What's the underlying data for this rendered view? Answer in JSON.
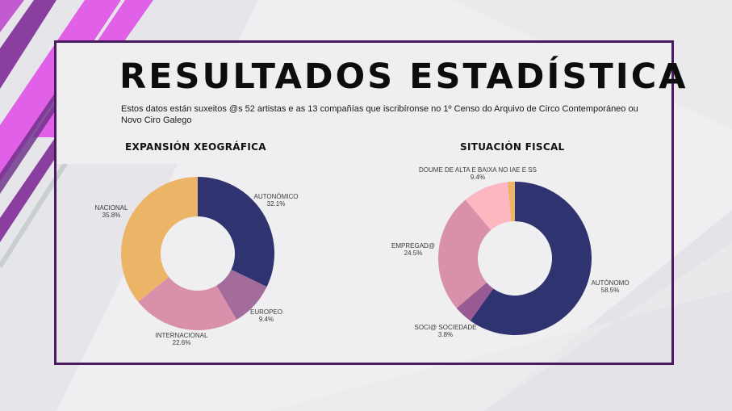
{
  "header": {
    "title": "RESULTADOS  ESTADÍSTICA",
    "subtitle": "Estos datos están suxeitos @s 52 artistas e as 13 compañías que  iscribíronse no 1º Censo do Arquivo de Circo Contemporáneo ou Novo Ciro Galego"
  },
  "colors": {
    "frame": "#4a1a5e",
    "accent_pink": "#e066e6",
    "accent_purple": "#9a4fb0"
  },
  "chart_data": [
    {
      "type": "pie",
      "title": "EXPANSIÓN XEOGRÁFICA",
      "donut": true,
      "slices": [
        {
          "name": "AUTONÓMICO",
          "value": 32.1,
          "label": "32.1%",
          "color": "#2f3470"
        },
        {
          "name": "EUROPEO",
          "value": 9.4,
          "label": "9.4%",
          "color": "#a46c9b"
        },
        {
          "name": "INTERNACIONAL",
          "value": 22.6,
          "label": "22.6%",
          "color": "#d990aa"
        },
        {
          "name": "NACIONAL",
          "value": 35.8,
          "label": "35.8%",
          "color": "#ecb466"
        }
      ]
    },
    {
      "type": "pie",
      "title": "SITUACIÓN FISCAL",
      "donut": true,
      "slices": [
        {
          "name": "AUTÓNOMO",
          "value": 58.5,
          "label": "58.5%",
          "color": "#2f3470"
        },
        {
          "name": "SOCI@ SOCIEDADE",
          "value": 3.8,
          "label": "3.8%",
          "color": "#9a5a93"
        },
        {
          "name": "EMPREGAD@",
          "value": 24.5,
          "label": "24.5%",
          "color": "#d990aa"
        },
        {
          "name": "DOUME DE ALTA E BAIXA NO IAE E SS",
          "value": 9.4,
          "label": "9.4%",
          "color": "#fdb7c0"
        },
        {
          "name": "",
          "value": 1.5,
          "label": "",
          "color": "#ecb466"
        }
      ]
    }
  ]
}
